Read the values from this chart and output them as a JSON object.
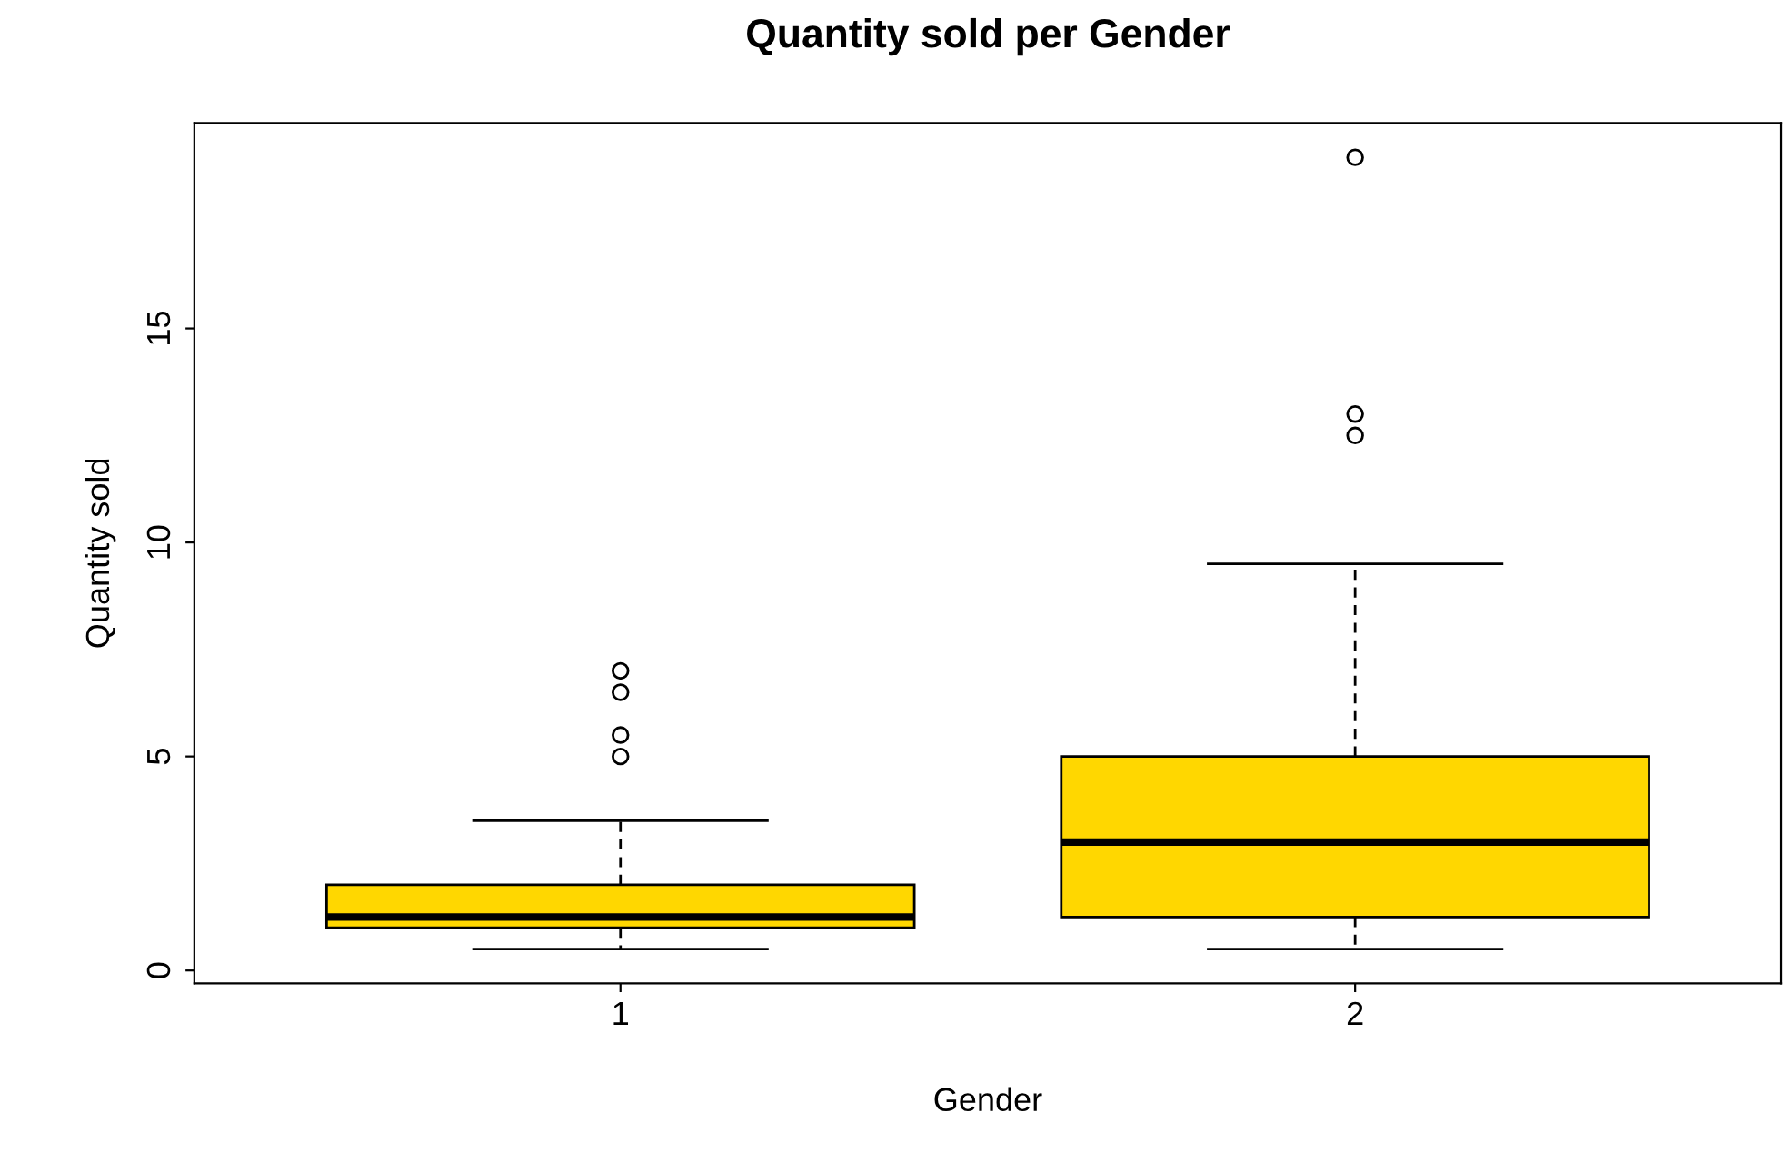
{
  "chart_data": {
    "type": "box",
    "title": "Quantity sold per Gender",
    "xlabel": "Gender",
    "ylabel": "Quantity sold",
    "categories": [
      "1",
      "2"
    ],
    "boxes": [
      {
        "low": 0.5,
        "q1": 1,
        "median": 1.25,
        "q3": 2,
        "high": 3.5,
        "outliers": [
          5,
          5.5,
          6.5,
          7
        ]
      },
      {
        "low": 0.5,
        "q1": 1.25,
        "median": 3,
        "q3": 5,
        "high": 9.5,
        "outliers": [
          12.5,
          13,
          19
        ]
      }
    ],
    "color": "#ffd700",
    "ylim": [
      -0.3,
      19.8
    ],
    "yticks": [
      0,
      5,
      10,
      15
    ],
    "grid": false,
    "marker": "circle"
  }
}
